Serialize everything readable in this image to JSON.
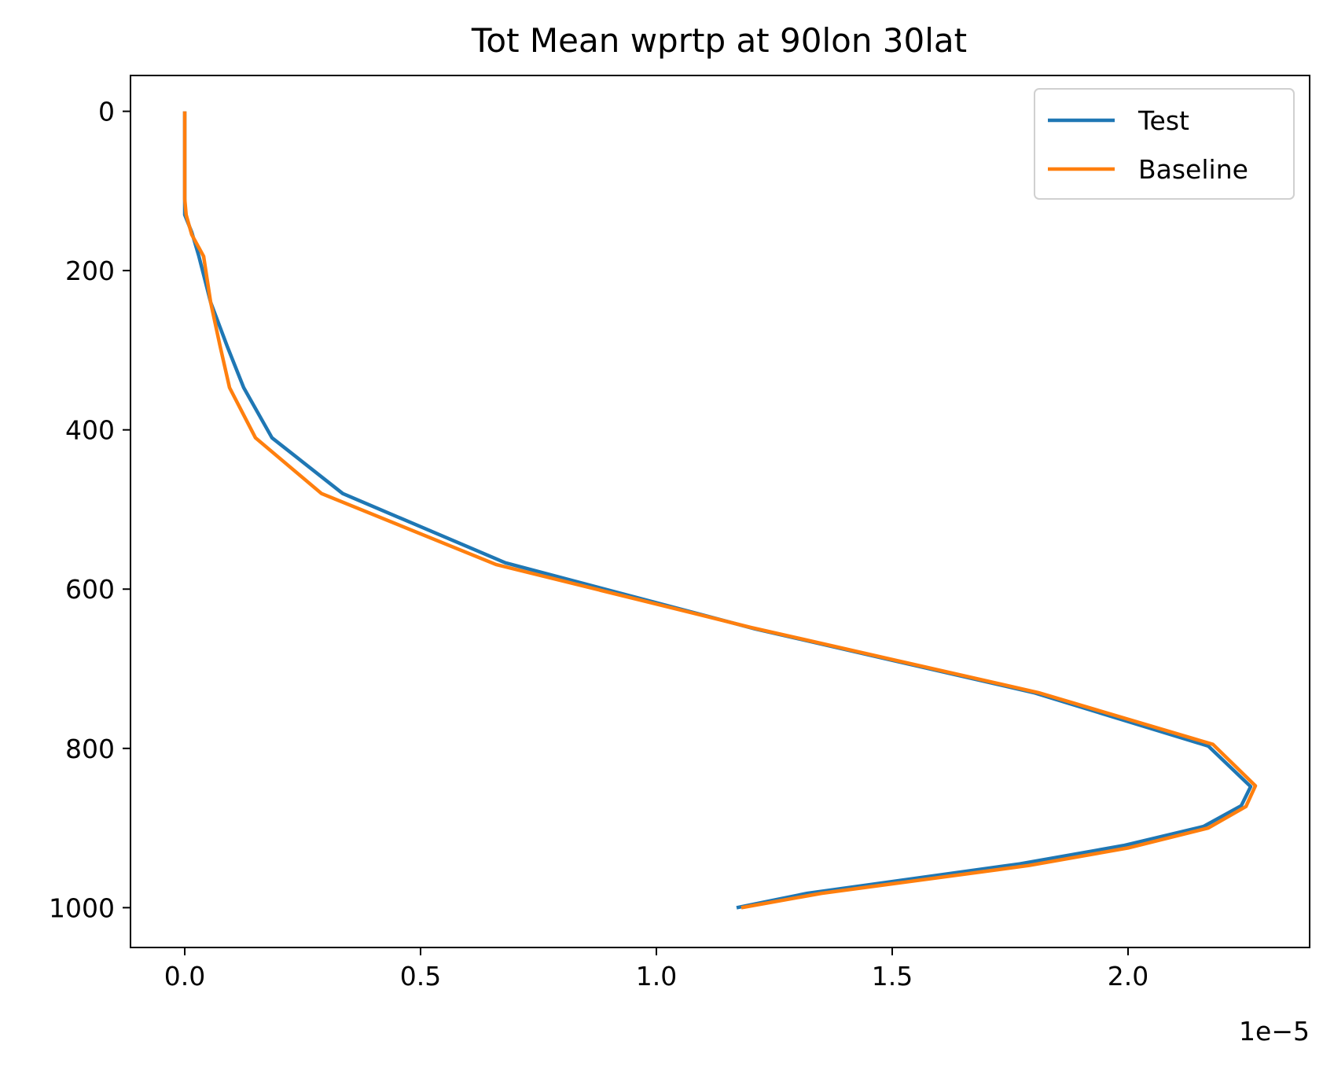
{
  "chart_data": {
    "type": "line",
    "title": "Tot Mean wprtp at 90lon 30lat",
    "xlabel": "",
    "ylabel": "",
    "x_offset_label": "1e−5",
    "xlim": [
      -0.115,
      2.385
    ],
    "ylim": [
      1050,
      -45
    ],
    "y_inverted": true,
    "grid": false,
    "legend_position": "top-right",
    "x_ticks": [
      {
        "value": 0.0,
        "label": "0.0"
      },
      {
        "value": 0.5,
        "label": "0.5"
      },
      {
        "value": 1.0,
        "label": "1.0"
      },
      {
        "value": 1.5,
        "label": "1.5"
      },
      {
        "value": 2.0,
        "label": "2.0"
      }
    ],
    "y_ticks": [
      {
        "value": 0,
        "label": "0"
      },
      {
        "value": 200,
        "label": "200"
      },
      {
        "value": 400,
        "label": "400"
      },
      {
        "value": 600,
        "label": "600"
      },
      {
        "value": 800,
        "label": "800"
      },
      {
        "value": 1000,
        "label": "1000"
      }
    ],
    "series": [
      {
        "name": "Test",
        "color": "#1f77b4",
        "points": [
          [
            0.0,
            0
          ],
          [
            0.0,
            30
          ],
          [
            0.0,
            60
          ],
          [
            0.0,
            90
          ],
          [
            0.0,
            110
          ],
          [
            0.0,
            130
          ],
          [
            0.015,
            152
          ],
          [
            0.03,
            182
          ],
          [
            0.055,
            240
          ],
          [
            0.09,
            295
          ],
          [
            0.125,
            347
          ],
          [
            0.185,
            410
          ],
          [
            0.335,
            480
          ],
          [
            0.68,
            567
          ],
          [
            1.21,
            650
          ],
          [
            1.8,
            730
          ],
          [
            2.17,
            797
          ],
          [
            2.26,
            848
          ],
          [
            2.24,
            872
          ],
          [
            2.16,
            898
          ],
          [
            1.99,
            922
          ],
          [
            1.77,
            945
          ],
          [
            1.32,
            982
          ],
          [
            1.17,
            1000
          ]
        ]
      },
      {
        "name": "Baseline",
        "color": "#ff7f0e",
        "points": [
          [
            0.0,
            0
          ],
          [
            0.0,
            30
          ],
          [
            0.0,
            60
          ],
          [
            0.0,
            90
          ],
          [
            0.0,
            110
          ],
          [
            0.003,
            130
          ],
          [
            0.015,
            155
          ],
          [
            0.04,
            182
          ],
          [
            0.055,
            240
          ],
          [
            0.075,
            295
          ],
          [
            0.095,
            347
          ],
          [
            0.15,
            410
          ],
          [
            0.29,
            480
          ],
          [
            0.66,
            569
          ],
          [
            1.2,
            648
          ],
          [
            1.81,
            730
          ],
          [
            2.18,
            795
          ],
          [
            2.27,
            847
          ],
          [
            2.25,
            873
          ],
          [
            2.17,
            900
          ],
          [
            2.0,
            925
          ],
          [
            1.79,
            947
          ],
          [
            1.35,
            982
          ],
          [
            1.18,
            1000
          ]
        ]
      }
    ]
  }
}
